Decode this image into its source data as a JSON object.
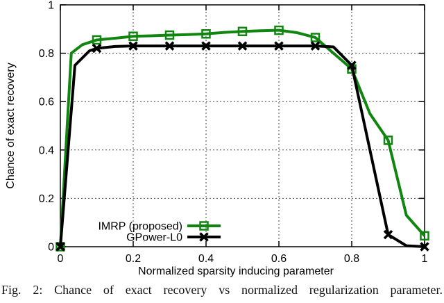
{
  "figure": {
    "caption": "Fig. 2: Chance of exact recovery vs normalized regularization parameter."
  },
  "chart_data": {
    "type": "line",
    "title": "",
    "xlabel": "Normalized sparsity inducing parameter",
    "ylabel": "Chance of exact recovery",
    "xlim": [
      0,
      1
    ],
    "ylim": [
      0,
      1
    ],
    "grid": "dotted",
    "legend_position": "inside-bottom-left",
    "xticks": {
      "values": [
        0,
        0.2,
        0.4,
        0.6,
        0.8,
        1
      ],
      "labels": [
        "0",
        "0.2",
        "0.4",
        "0.6",
        "0.8",
        "1"
      ]
    },
    "yticks": {
      "values": [
        0,
        0.2,
        0.4,
        0.6,
        0.8,
        1
      ],
      "labels": [
        "0",
        "0.2",
        "0.4",
        "0.6",
        "0.8",
        "1"
      ]
    },
    "series": [
      {
        "id": "imrp",
        "name": "IMRP (proposed)",
        "color": "#108510",
        "marker": "open-square",
        "x": [
          0,
          0.1,
          0.2,
          0.3,
          0.4,
          0.5,
          0.6,
          0.7,
          0.8,
          0.9,
          1.0
        ],
        "y": [
          0,
          0.855,
          0.87,
          0.875,
          0.88,
          0.89,
          0.895,
          0.865,
          0.735,
          0.44,
          0.045
        ],
        "line_vertices": [
          [
            0,
            0
          ],
          [
            0.03,
            0.8
          ],
          [
            0.06,
            0.835
          ],
          [
            0.1,
            0.855
          ],
          [
            0.15,
            0.862
          ],
          [
            0.2,
            0.87
          ],
          [
            0.25,
            0.872
          ],
          [
            0.3,
            0.875
          ],
          [
            0.35,
            0.877
          ],
          [
            0.4,
            0.88
          ],
          [
            0.45,
            0.886
          ],
          [
            0.5,
            0.89
          ],
          [
            0.55,
            0.893
          ],
          [
            0.6,
            0.895
          ],
          [
            0.65,
            0.885
          ],
          [
            0.7,
            0.865
          ],
          [
            0.75,
            0.8
          ],
          [
            0.8,
            0.735
          ],
          [
            0.85,
            0.55
          ],
          [
            0.9,
            0.44
          ],
          [
            0.95,
            0.13
          ],
          [
            1,
            0.045
          ]
        ]
      },
      {
        "id": "gpower",
        "name": "GPower-L0",
        "color": "#000000",
        "marker": "x-cross",
        "x": [
          0,
          0.1,
          0.2,
          0.3,
          0.4,
          0.5,
          0.6,
          0.7,
          0.8,
          0.9,
          1.0
        ],
        "y": [
          0,
          0.82,
          0.83,
          0.83,
          0.83,
          0.83,
          0.83,
          0.83,
          0.75,
          0.05,
          0
        ],
        "line_vertices": [
          [
            0,
            0
          ],
          [
            0.04,
            0.75
          ],
          [
            0.08,
            0.81
          ],
          [
            0.1,
            0.82
          ],
          [
            0.15,
            0.828
          ],
          [
            0.2,
            0.83
          ],
          [
            0.3,
            0.83
          ],
          [
            0.4,
            0.83
          ],
          [
            0.5,
            0.83
          ],
          [
            0.6,
            0.83
          ],
          [
            0.7,
            0.83
          ],
          [
            0.75,
            0.826
          ],
          [
            0.8,
            0.75
          ],
          [
            0.85,
            0.4
          ],
          [
            0.9,
            0.05
          ],
          [
            0.95,
            0.004
          ],
          [
            1,
            0
          ]
        ]
      }
    ]
  }
}
